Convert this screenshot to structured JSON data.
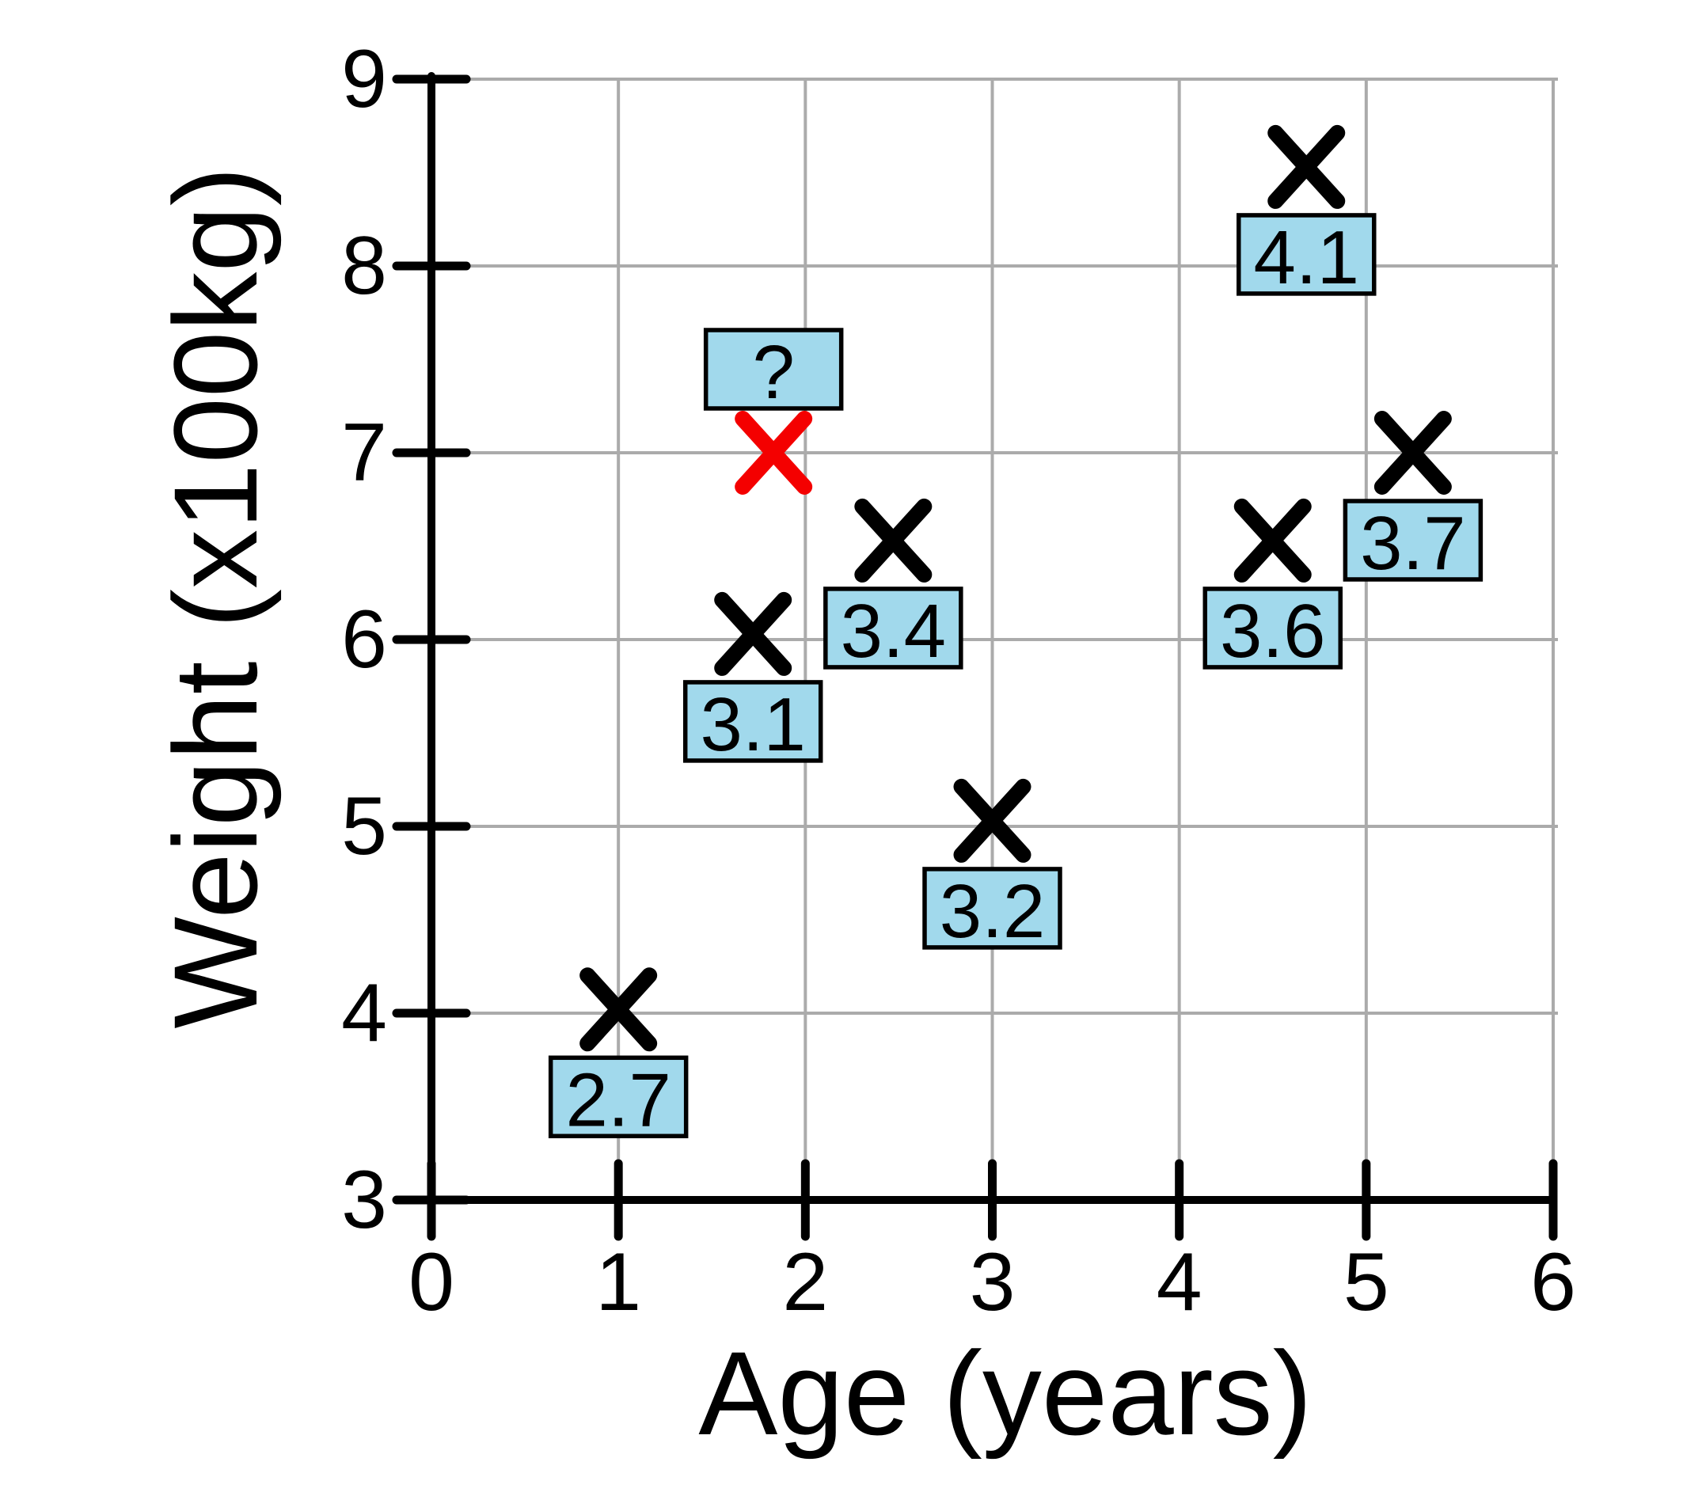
{
  "chart_data": {
    "type": "scatter",
    "title": "",
    "xlabel": "Age (years)",
    "ylabel": "Weight (x100kg)",
    "xlim": [
      0,
      6
    ],
    "ylim": [
      3,
      9
    ],
    "xticks": [
      "0",
      "1",
      "2",
      "3",
      "4",
      "5",
      "6"
    ],
    "yticks": [
      "3",
      "4",
      "5",
      "6",
      "7",
      "8",
      "9"
    ],
    "grid": true,
    "legend": "none",
    "marker": "x",
    "points": [
      {
        "x": 1.0,
        "y": 4.02,
        "label": "2.7",
        "color": "#000000",
        "label_pos": "below"
      },
      {
        "x": 1.72,
        "y": 6.03,
        "label": "3.1",
        "color": "#000000",
        "label_pos": "below"
      },
      {
        "x": 1.83,
        "y": 7.0,
        "label": "?",
        "color": "#f40000",
        "label_pos": "above"
      },
      {
        "x": 2.47,
        "y": 6.53,
        "label": "3.4",
        "color": "#000000",
        "label_pos": "below"
      },
      {
        "x": 3.0,
        "y": 5.03,
        "label": "3.2",
        "color": "#000000",
        "label_pos": "below"
      },
      {
        "x": 4.5,
        "y": 6.53,
        "label": "3.6",
        "color": "#000000",
        "label_pos": "below"
      },
      {
        "x": 4.68,
        "y": 8.53,
        "label": "4.1",
        "color": "#000000",
        "label_pos": "below"
      },
      {
        "x": 5.25,
        "y": 7.0,
        "label": "3.7",
        "color": "#000000",
        "label_pos": "below"
      }
    ],
    "colors": {
      "label_box_fill": "#a1d9ec",
      "label_box_border": "#000000",
      "marker_default": "#000000",
      "marker_unknown": "#f40000",
      "grid": "#ababab",
      "axis": "#000000",
      "text": "#000000",
      "background": "#ffffff"
    }
  }
}
